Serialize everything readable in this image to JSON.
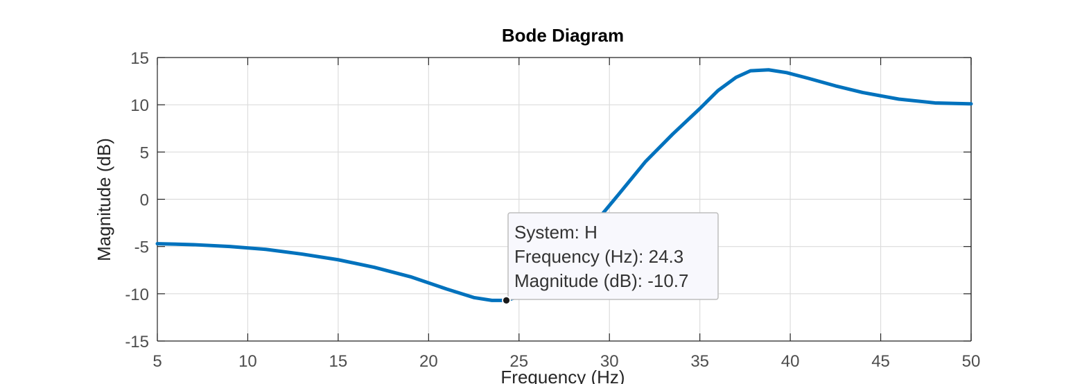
{
  "chart_data": {
    "type": "line",
    "title": "Bode Diagram",
    "xlabel": "Frequency  (Hz)",
    "ylabel": "Magnitude (dB)",
    "xlim": [
      5,
      50
    ],
    "ylim": [
      -15,
      15
    ],
    "xticks": [
      5,
      10,
      15,
      20,
      25,
      30,
      35,
      40,
      45,
      50
    ],
    "yticks": [
      -15,
      -10,
      -5,
      0,
      5,
      10,
      15
    ],
    "grid": true,
    "series": [
      {
        "color": "#0072BD",
        "x": [
          5,
          7,
          9,
          11,
          13,
          15,
          17,
          19,
          21,
          22.5,
          23.5,
          24.3,
          25.5,
          27,
          28.5,
          29.5,
          30.5,
          32,
          33.5,
          35,
          36,
          37,
          37.8,
          38.8,
          39.8,
          41,
          42.5,
          44,
          46,
          48,
          50
        ],
        "y": [
          -4.7,
          -4.8,
          -5.0,
          -5.3,
          -5.8,
          -6.4,
          -7.2,
          -8.2,
          -9.5,
          -10.4,
          -10.7,
          -10.7,
          -10.0,
          -7.5,
          -4.2,
          -1.8,
          0.5,
          4.0,
          6.9,
          9.6,
          11.5,
          12.9,
          13.6,
          13.7,
          13.4,
          12.8,
          12.0,
          11.3,
          10.6,
          10.2,
          10.1
        ]
      }
    ],
    "datatip": {
      "x": 24.3,
      "y": -10.7,
      "lines": [
        "System: H",
        "Frequency (Hz): 24.3",
        "Magnitude (dB): -10.7"
      ]
    }
  }
}
